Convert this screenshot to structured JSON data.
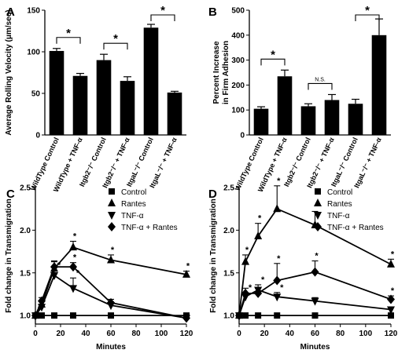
{
  "chart_data": [
    {
      "panel": "A",
      "type": "bar",
      "ylabel": "Average Rolling Velocity (μm/sec)",
      "ylim": [
        0,
        150
      ],
      "yticks": [
        0,
        50,
        100,
        150
      ],
      "categories": [
        "WildType Control",
        "WildType + TNF-α",
        "Itgb2⁻/⁻ Control",
        "Itgb2⁻/⁻ + TNF-α",
        "ItgaL⁻/⁻ Control",
        "ItgaL⁻/⁻ + TNF-α"
      ],
      "values": [
        101,
        71,
        90,
        65,
        129,
        51
      ],
      "errors": [
        3,
        3,
        7,
        5,
        4,
        1.5
      ],
      "comparisons": [
        {
          "pair": [
            0,
            1
          ],
          "label": "*"
        },
        {
          "pair": [
            2,
            3
          ],
          "label": "*"
        },
        {
          "pair": [
            4,
            5
          ],
          "label": "*"
        }
      ]
    },
    {
      "panel": "B",
      "type": "bar",
      "ylabel": "Percent Increase in Firm Adhesion",
      "ylim": [
        0,
        500
      ],
      "yticks": [
        0,
        100,
        200,
        300,
        400,
        500
      ],
      "categories": [
        "WildType Control",
        "WildType + TNF-α",
        "Itgb2⁻/⁻ Control",
        "Itgb2⁻/⁻ + TNF-α",
        "ItgaL⁻/⁻ Control",
        "ItgaL⁻/⁻ + TNF-α"
      ],
      "values": [
        105,
        235,
        115,
        140,
        125,
        400
      ],
      "errors": [
        8,
        25,
        10,
        22,
        18,
        65
      ],
      "comparisons": [
        {
          "pair": [
            0,
            1
          ],
          "label": "*"
        },
        {
          "pair": [
            2,
            3
          ],
          "label": "N.S."
        },
        {
          "pair": [
            4,
            5
          ],
          "label": "*"
        }
      ]
    },
    {
      "panel": "C",
      "type": "line",
      "xlabel": "Minutes",
      "ylabel": "Fold change in Transmigration",
      "xlim": [
        0,
        120
      ],
      "ylim": [
        0.9,
        2.5
      ],
      "xticks": [
        0,
        20,
        40,
        60,
        80,
        100,
        120
      ],
      "yticks": [
        1.0,
        1.5,
        2.0,
        2.5
      ],
      "x": [
        0,
        5,
        15,
        30,
        60,
        120
      ],
      "series": [
        {
          "name": "Control",
          "marker": "square",
          "values": [
            1.0,
            1.0,
            1.0,
            1.0,
            1.0,
            1.0
          ],
          "errors": [
            0,
            0,
            0,
            0,
            0,
            0
          ],
          "stars": [
            false,
            false,
            false,
            false,
            false,
            false
          ]
        },
        {
          "name": "Rantes",
          "marker": "triangle-up",
          "values": [
            1.0,
            1.13,
            1.55,
            1.8,
            1.65,
            1.48
          ],
          "errors": [
            0,
            0.04,
            0.08,
            0.07,
            0.06,
            0.04
          ],
          "stars": [
            false,
            false,
            false,
            true,
            true,
            true
          ]
        },
        {
          "name": "TNF-α",
          "marker": "triangle-down",
          "values": [
            1.0,
            1.1,
            1.47,
            1.32,
            1.12,
            0.97
          ],
          "errors": [
            0,
            0.03,
            0.06,
            0.12,
            0.04,
            0.03
          ],
          "stars": [
            false,
            false,
            true,
            true,
            false,
            false
          ]
        },
        {
          "name": "TNF-α + Rantes",
          "marker": "diamond",
          "values": [
            1.0,
            1.17,
            1.57,
            1.57,
            1.15,
            0.97
          ],
          "errors": [
            0,
            0.04,
            0.07,
            0.05,
            0.04,
            0.03
          ],
          "stars": [
            false,
            false,
            false,
            true,
            false,
            false
          ]
        }
      ]
    },
    {
      "panel": "D",
      "type": "line",
      "xlabel": "Minutes",
      "ylabel": "Fold change in Transmigration",
      "xlim": [
        0,
        120
      ],
      "ylim": [
        0.9,
        2.5
      ],
      "xticks": [
        0,
        20,
        40,
        60,
        80,
        100,
        120
      ],
      "yticks": [
        1.0,
        1.5,
        2.0,
        2.5
      ],
      "x": [
        0,
        5,
        15,
        30,
        60,
        120
      ],
      "series": [
        {
          "name": "Control",
          "marker": "square",
          "values": [
            1.0,
            1.0,
            1.0,
            1.0,
            1.0,
            1.0
          ],
          "errors": [
            0,
            0,
            0,
            0,
            0,
            0
          ],
          "stars": [
            false,
            false,
            false,
            false,
            false,
            false
          ]
        },
        {
          "name": "Rantes",
          "marker": "triangle-up",
          "values": [
            1.0,
            1.63,
            1.93,
            2.25,
            2.06,
            1.6
          ],
          "errors": [
            0,
            0.08,
            0.15,
            0.27,
            0.16,
            0.06
          ],
          "stars": [
            false,
            true,
            true,
            true,
            true,
            true
          ]
        },
        {
          "name": "TNF-α",
          "marker": "triangle-down",
          "values": [
            1.0,
            1.22,
            1.3,
            1.22,
            1.17,
            1.07
          ],
          "errors": [
            0,
            0.05,
            0.06,
            0.05,
            0.04,
            0.03
          ],
          "stars": [
            false,
            true,
            true,
            true,
            false,
            false
          ]
        },
        {
          "name": "TNF-α + Rantes",
          "marker": "diamond",
          "values": [
            1.0,
            1.26,
            1.26,
            1.41,
            1.51,
            1.19
          ],
          "errors": [
            0,
            0.06,
            0.06,
            0.2,
            0.13,
            0.04
          ],
          "stars": [
            false,
            false,
            false,
            true,
            true,
            true
          ]
        }
      ]
    }
  ]
}
